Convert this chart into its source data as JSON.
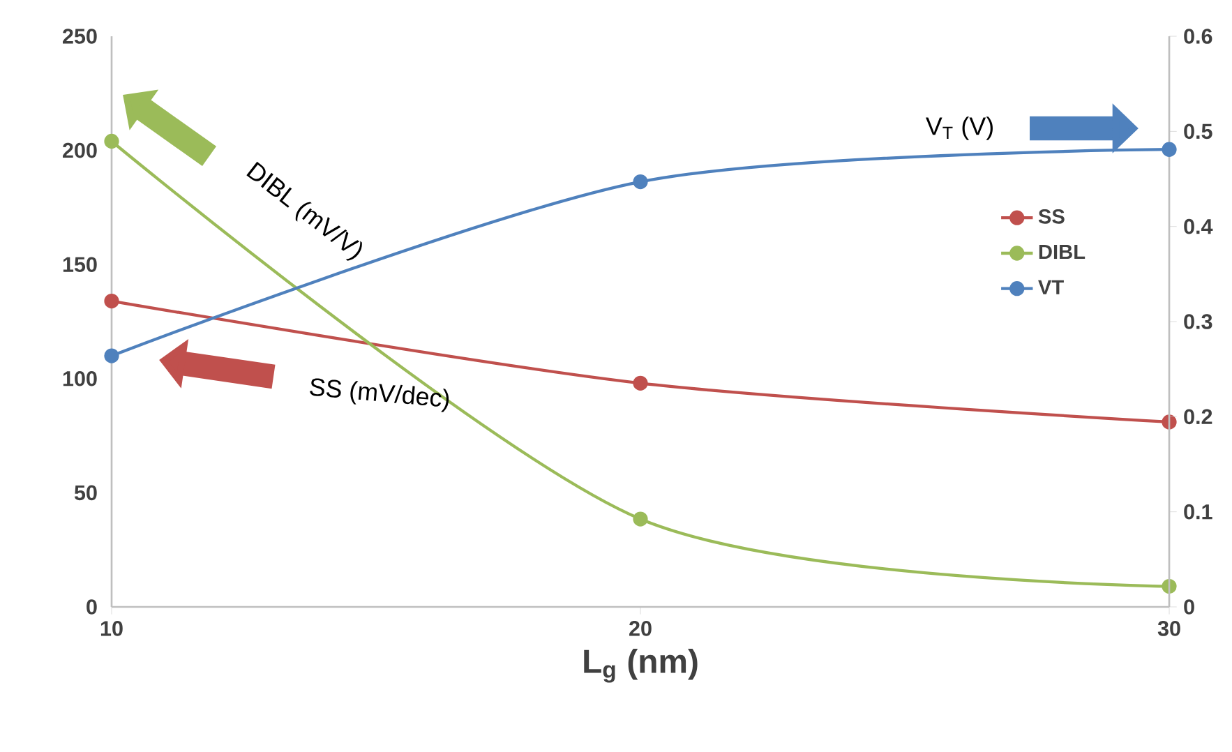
{
  "chart_data": {
    "type": "line",
    "xlabel": "L$_{g}$ (nm)",
    "x": [
      10,
      20,
      30
    ],
    "xlim": [
      10,
      30
    ],
    "xticks": [
      10,
      20,
      30
    ],
    "ylim": [
      0,
      250
    ],
    "yticks": [
      0,
      50,
      100,
      150,
      200,
      250
    ],
    "y2lim": [
      0,
      0.6
    ],
    "y2ticks": [
      0,
      0.1,
      0.2,
      0.3,
      0.4,
      0.5,
      0.6
    ],
    "series": [
      {
        "name": "SS",
        "color": "#c0504d",
        "values": [
          134,
          98,
          81
        ]
      },
      {
        "name": "DIBL",
        "color": "#9bbb59",
        "values": [
          204,
          38.5,
          9
        ]
      },
      {
        "name": "VT",
        "color": "#4f81bd",
        "values": [
          0.264,
          0.447,
          0.481
        ],
        "axis": "y2"
      }
    ],
    "annotations": [
      "DIBL (mV/V)",
      "SS (mV/dec)",
      "V$_{T}$ (V)"
    ],
    "legend": "right",
    "marker": "circle",
    "line_style": "solid",
    "grid": false
  }
}
